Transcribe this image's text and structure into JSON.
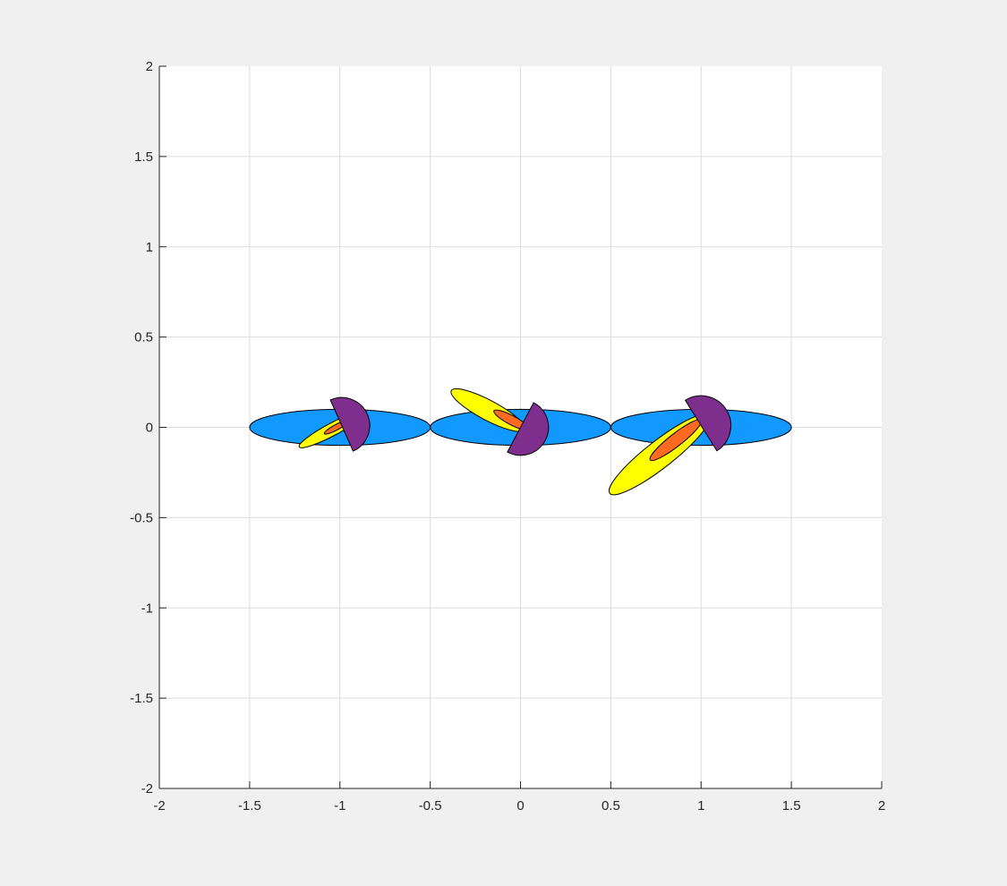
{
  "chart_data": {
    "type": "scatter",
    "title": "",
    "xlabel": "",
    "ylabel": "",
    "xlim": [
      -2,
      2
    ],
    "ylim": [
      -2,
      2
    ],
    "grid": true,
    "xticks": [
      -2,
      -1.5,
      -1,
      -0.5,
      0,
      0.5,
      1,
      1.5,
      2
    ],
    "yticks": [
      -2,
      -1.5,
      -1,
      -0.5,
      0,
      0.5,
      1,
      1.5,
      2
    ],
    "xtick_labels": [
      "-2",
      "-1.5",
      "-1",
      "-0.5",
      "0",
      "0.5",
      "1",
      "1.5",
      "2"
    ],
    "ytick_labels": [
      "-2",
      "-1.5",
      "-1",
      "-0.5",
      "0",
      "0.5",
      "1",
      "1.5",
      "2"
    ],
    "colors": {
      "figure_bg": "#f0f0f0",
      "axes_bg": "#ffffff",
      "grid": "#dcdcdc",
      "axis": "#262626",
      "blue": "#1199ff",
      "yellow": "#ffff00",
      "orange": "#ff6a22",
      "purple": "#7e2f8e",
      "edge": "#000000"
    },
    "groups": [
      {
        "body": {
          "cx": -1.0,
          "cy": 0.0,
          "rx": 0.5,
          "ry": 0.1,
          "angle_deg": 0
        },
        "outer": {
          "cx": -1.04,
          "cy": -0.01,
          "rx": 0.21,
          "ry": 0.035,
          "angle_deg": 28
        },
        "inner": {
          "cx": -1.02,
          "cy": 0.0,
          "rx": 0.075,
          "ry": 0.015,
          "angle_deg": 28
        },
        "cap": {
          "cx": -0.99,
          "cy": 0.01,
          "r": 0.155,
          "angle_deg": -66
        }
      },
      {
        "body": {
          "cx": 0.0,
          "cy": 0.0,
          "rx": 0.5,
          "ry": 0.1,
          "angle_deg": 0
        },
        "outer": {
          "cx": -0.18,
          "cy": 0.095,
          "rx": 0.23,
          "ry": 0.055,
          "angle_deg": -28
        },
        "inner": {
          "cx": -0.05,
          "cy": 0.04,
          "rx": 0.11,
          "ry": 0.025,
          "angle_deg": -28
        },
        "cap": {
          "cx": 0.0,
          "cy": 0.0,
          "r": 0.155,
          "angle_deg": -118
        }
      },
      {
        "body": {
          "cx": 1.0,
          "cy": 0.0,
          "rx": 0.5,
          "ry": 0.1,
          "angle_deg": 0
        },
        "outer": {
          "cx": 0.77,
          "cy": -0.15,
          "rx": 0.35,
          "ry": 0.075,
          "angle_deg": 38
        },
        "inner": {
          "cx": 0.86,
          "cy": -0.07,
          "rx": 0.18,
          "ry": 0.035,
          "angle_deg": 38
        },
        "cap": {
          "cx": 1.0,
          "cy": 0.01,
          "r": 0.165,
          "angle_deg": -58
        }
      }
    ]
  }
}
